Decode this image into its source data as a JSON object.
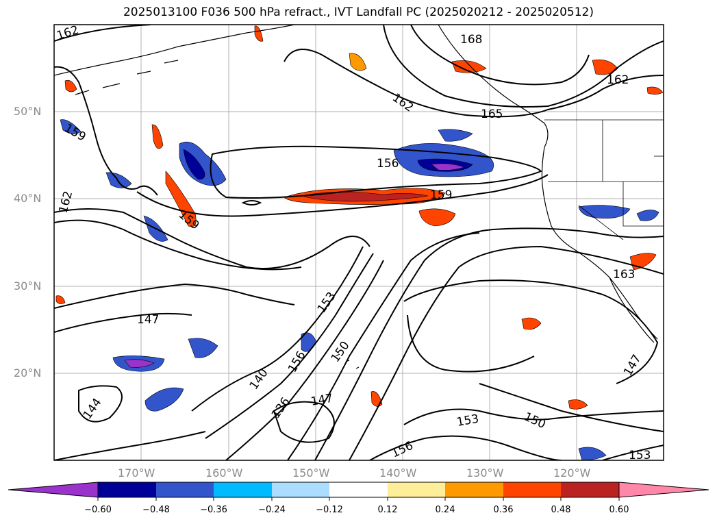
{
  "title": "2025013100 F036 500 hPa refract., IVT Landfall PC (2025020212 - 2025020512)",
  "map": {
    "lat_labels": [
      "50°N",
      "40°N",
      "30°N",
      "20°N"
    ],
    "lon_labels": [
      "170°W",
      "160°W",
      "150°W",
      "140°W",
      "130°W",
      "120°W"
    ],
    "contour_labels": [
      "162",
      "168",
      "162",
      "165",
      "156",
      "159",
      "159",
      "162",
      "159",
      "162",
      "163",
      "153",
      "147",
      "156",
      "150",
      "140",
      "144",
      "147",
      "153",
      "150",
      "156",
      "136",
      "147",
      "153"
    ]
  },
  "colorbar": {
    "colors": [
      "#9933cc",
      "#000099",
      "#3355cc",
      "#00bbff",
      "#aaddff",
      "#ffffff",
      "#ffee99",
      "#ff9900",
      "#ff4400",
      "#bb2222",
      "#ff88aa"
    ],
    "tick_labels": [
      "−0.60",
      "−0.48",
      "−0.36",
      "−0.24",
      "−0.12",
      "0.12",
      "0.24",
      "0.36",
      "0.48",
      "0.60"
    ]
  }
}
